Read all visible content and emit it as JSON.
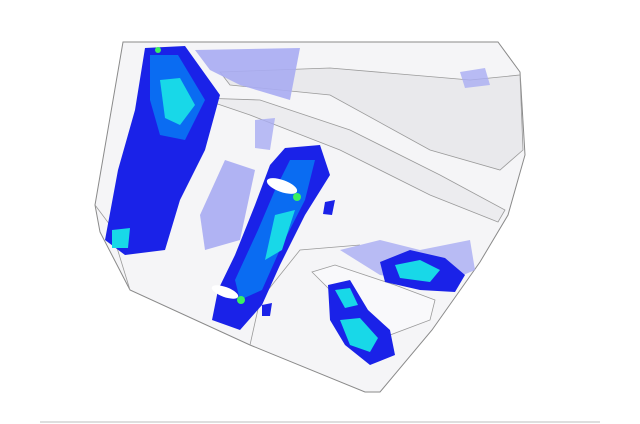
{
  "render": {
    "type": "fea-contour-plot",
    "colors": {
      "background": "#ffffff",
      "body_fill": "#f4f4f6",
      "edge": "#8a8a8a",
      "low_light": "#a9acf2",
      "low": "#1a22e8",
      "mid": "#0a5cf0",
      "high": "#18d8e8",
      "peak": "#3cf060",
      "baseline": "#bcbcbc"
    }
  }
}
